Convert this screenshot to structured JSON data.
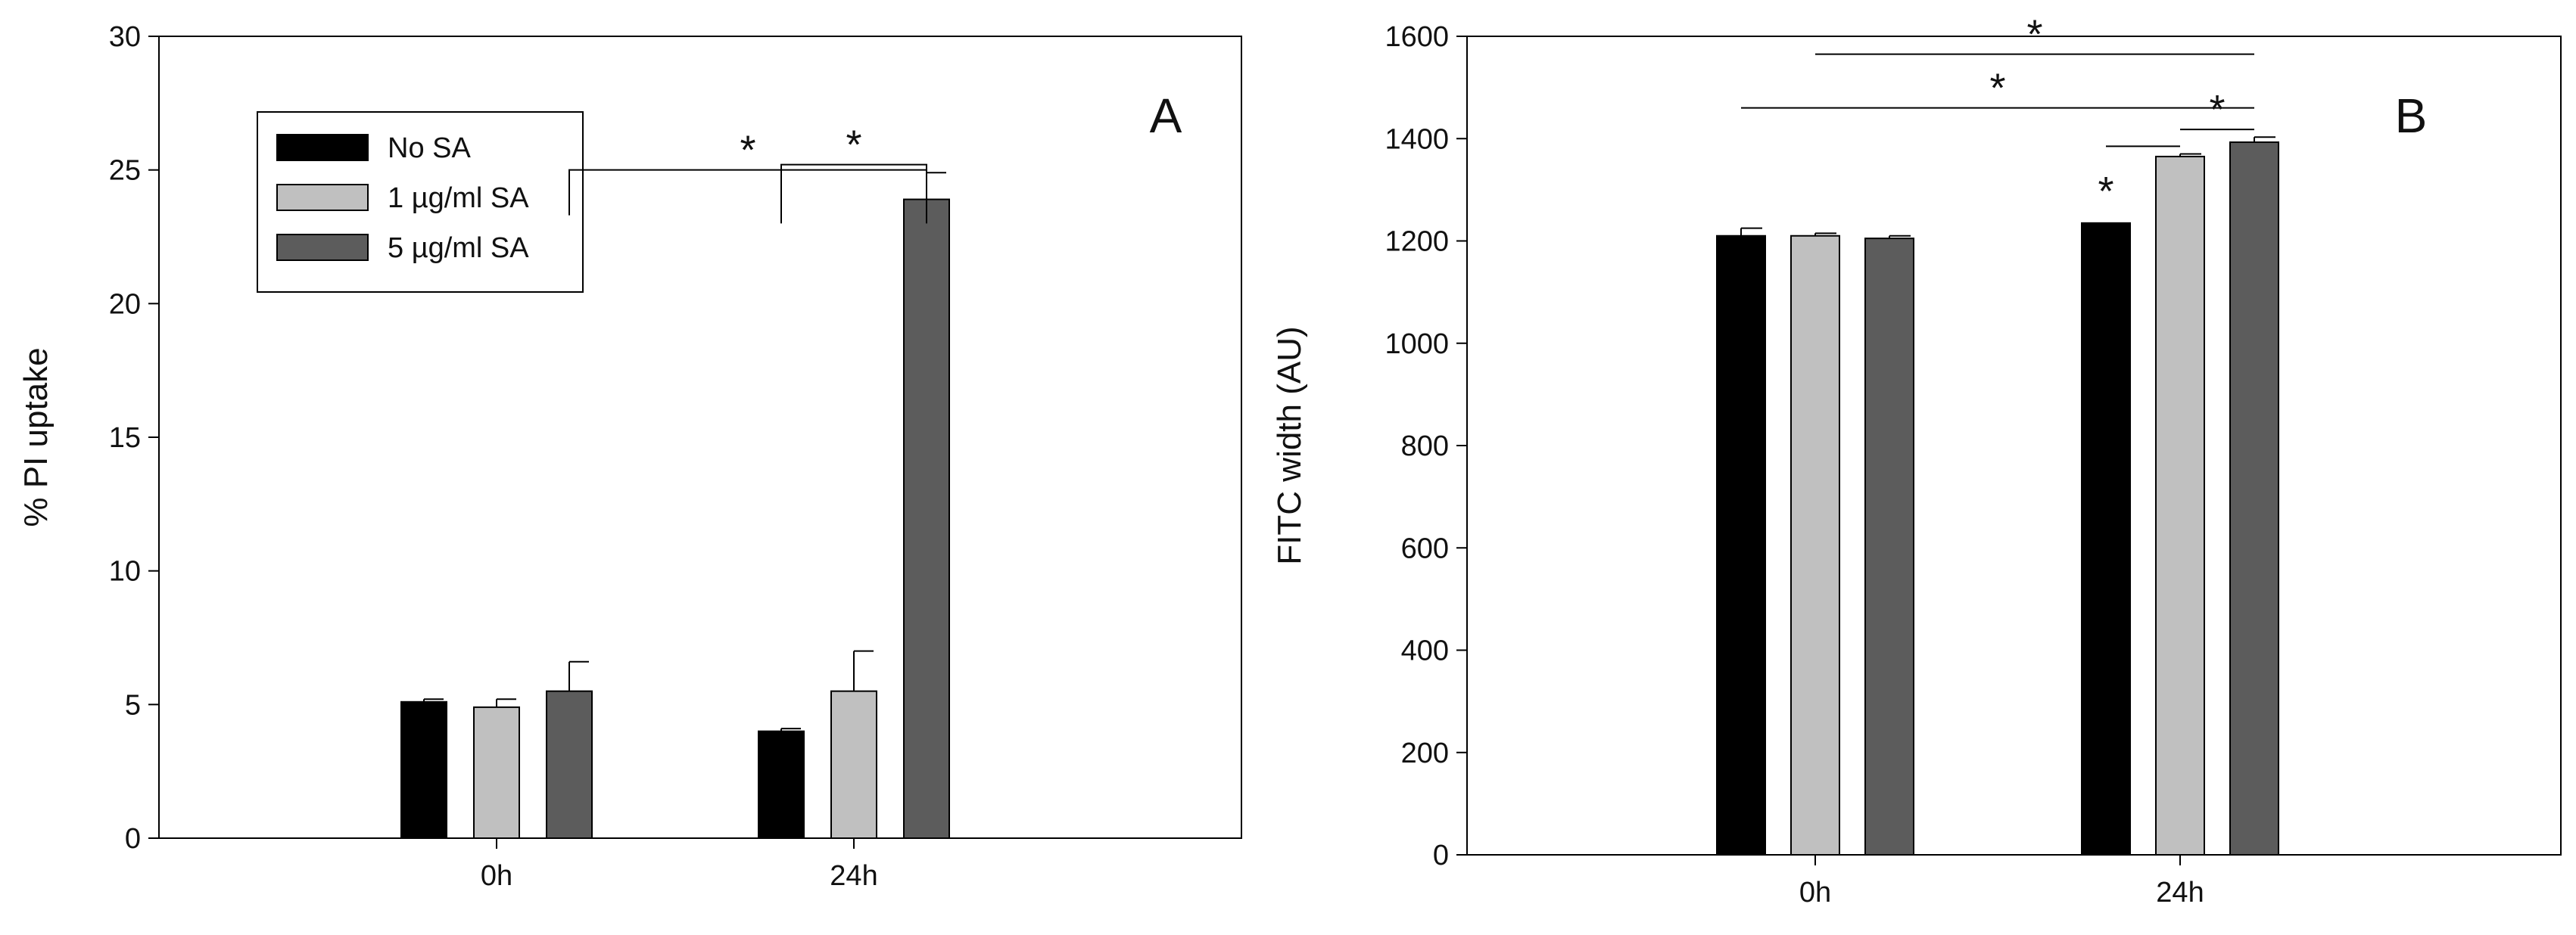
{
  "colors": {
    "No SA": "#000000",
    "1 µg/ml SA": "#c0c0c0",
    "5 µg/ml SA": "#5c5c5c"
  },
  "chart_data": [
    {
      "panel_label": "A",
      "type": "bar",
      "ylabel": "% PI uptake",
      "xlabel": "",
      "ylim": [
        0,
        30
      ],
      "yticks": [
        0,
        5,
        10,
        15,
        20,
        25,
        30
      ],
      "categories": [
        "0h",
        "24h"
      ],
      "series": [
        {
          "name": "No SA",
          "values": [
            5.1,
            4.0
          ],
          "errors": [
            0.1,
            0.1
          ]
        },
        {
          "name": "1 µg/ml SA",
          "values": [
            4.9,
            5.5
          ],
          "errors": [
            0.3,
            1.5
          ]
        },
        {
          "name": "5 µg/ml SA",
          "values": [
            5.5,
            23.9
          ],
          "errors": [
            1.1,
            1.0
          ]
        }
      ],
      "legend": {
        "position": "top-left",
        "entries": [
          "No SA",
          "1 µg/ml SA",
          "5 µg/ml SA"
        ]
      },
      "significance": [
        {
          "label": "*",
          "from": {
            "category": "0h",
            "series": "5 µg/ml SA"
          },
          "to": {
            "category": "24h",
            "series": "5 µg/ml SA"
          },
          "style": "bracket",
          "level": 25
        },
        {
          "label": "*",
          "from": {
            "category": "24h",
            "series": "No SA"
          },
          "to": {
            "category": "24h",
            "series": "5 µg/ml SA"
          },
          "style": "bracket",
          "level": 25.2,
          "drop_to": 23
        }
      ],
      "grid": false
    },
    {
      "panel_label": "B",
      "type": "bar",
      "ylabel": "FITC width (AU)",
      "xlabel": "",
      "ylim": [
        0,
        1600
      ],
      "yticks": [
        0,
        200,
        400,
        600,
        800,
        1000,
        1200,
        1400,
        1600
      ],
      "categories": [
        "0h",
        "24h"
      ],
      "series": [
        {
          "name": "No SA",
          "values": [
            1210,
            1235
          ],
          "errors": [
            15,
            0
          ]
        },
        {
          "name": "1 µg/ml SA",
          "values": [
            1210,
            1365
          ],
          "errors": [
            5,
            5
          ]
        },
        {
          "name": "5 µg/ml SA",
          "values": [
            1205,
            1393
          ],
          "errors": [
            5,
            10
          ]
        }
      ],
      "marker_above_bar": {
        "label": "*",
        "category": "24h",
        "series": "No SA"
      },
      "significance": [
        {
          "label": "*",
          "from": {
            "category": "0h",
            "series": "1 µg/ml SA"
          },
          "to": {
            "category": "24h",
            "series": "5 µg/ml SA"
          },
          "style": "line",
          "level": 1565
        },
        {
          "label": "*",
          "from": {
            "category": "0h",
            "series": "No SA"
          },
          "to": {
            "category": "24h",
            "series": "5 µg/ml SA"
          },
          "style": "line",
          "level": 1460
        },
        {
          "label": "*",
          "from": {
            "category": "24h",
            "series": "1 µg/ml SA"
          },
          "to": {
            "category": "24h",
            "series": "5 µg/ml SA"
          },
          "style": "line",
          "level": 1418
        },
        {
          "label": "",
          "from": {
            "category": "24h",
            "series": "No SA"
          },
          "to": {
            "category": "24h",
            "series": "1 µg/ml SA"
          },
          "style": "line",
          "level": 1385
        }
      ],
      "grid": false
    }
  ]
}
